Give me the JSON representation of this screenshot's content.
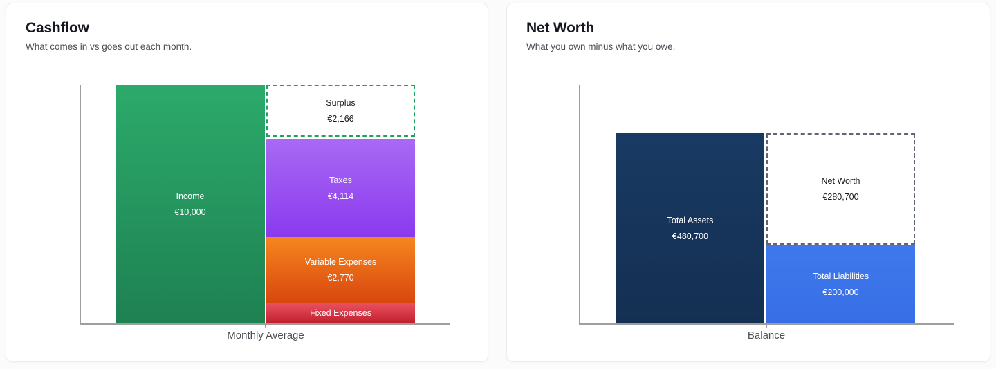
{
  "page": {
    "background": "#fbfbfc"
  },
  "colors": {
    "income_top": "#2caa6b",
    "income_bottom": "#1e8152",
    "surplus_border": "#21a164",
    "taxes_top": "#a969f4",
    "taxes_bottom": "#8a3aee",
    "variable_top": "#f6861f",
    "variable_bottom": "#d8470e",
    "fixed_top": "#ea5260",
    "fixed_bottom": "#c01f2e",
    "assets": "#16365e",
    "networth_border": "#5f6673",
    "liabilities": "#3b73e9",
    "axis": "#9e9e9e"
  },
  "chart_data": [
    {
      "type": "bar",
      "variant": "stacked-comparison",
      "title": "Cashflow",
      "subtitle": "What comes in vs goes out each month.",
      "xlabel": "Monthly Average",
      "currency": "EUR",
      "ylim": [
        0,
        10000
      ],
      "grid": false,
      "legend": "none",
      "income": {
        "name": "Income",
        "value": 10000,
        "display": "€10,000"
      },
      "breakdown": [
        {
          "name": "Surplus",
          "value": 2166,
          "display": "€2,166",
          "style": "dashed-outline"
        },
        {
          "name": "Taxes",
          "value": 4114,
          "display": "€4,114",
          "style": "solid"
        },
        {
          "name": "Variable Expenses",
          "value": 2770,
          "display": "€2,770",
          "style": "solid"
        },
        {
          "name": "Fixed Expenses",
          "value": 950,
          "display": "",
          "style": "solid"
        }
      ]
    },
    {
      "type": "bar",
      "variant": "stacked-comparison",
      "title": "Net Worth",
      "subtitle": "What you own minus what you owe.",
      "xlabel": "Balance",
      "currency": "EUR",
      "ylim": [
        0,
        600000
      ],
      "grid": false,
      "legend": "none",
      "assets": {
        "name": "Total Assets",
        "value": 480700,
        "display": "€480,700"
      },
      "breakdown": [
        {
          "name": "Net Worth",
          "value": 280700,
          "display": "€280,700",
          "style": "dashed-outline"
        },
        {
          "name": "Total Liabilities",
          "value": 200000,
          "display": "€200,000",
          "style": "solid"
        }
      ]
    }
  ]
}
